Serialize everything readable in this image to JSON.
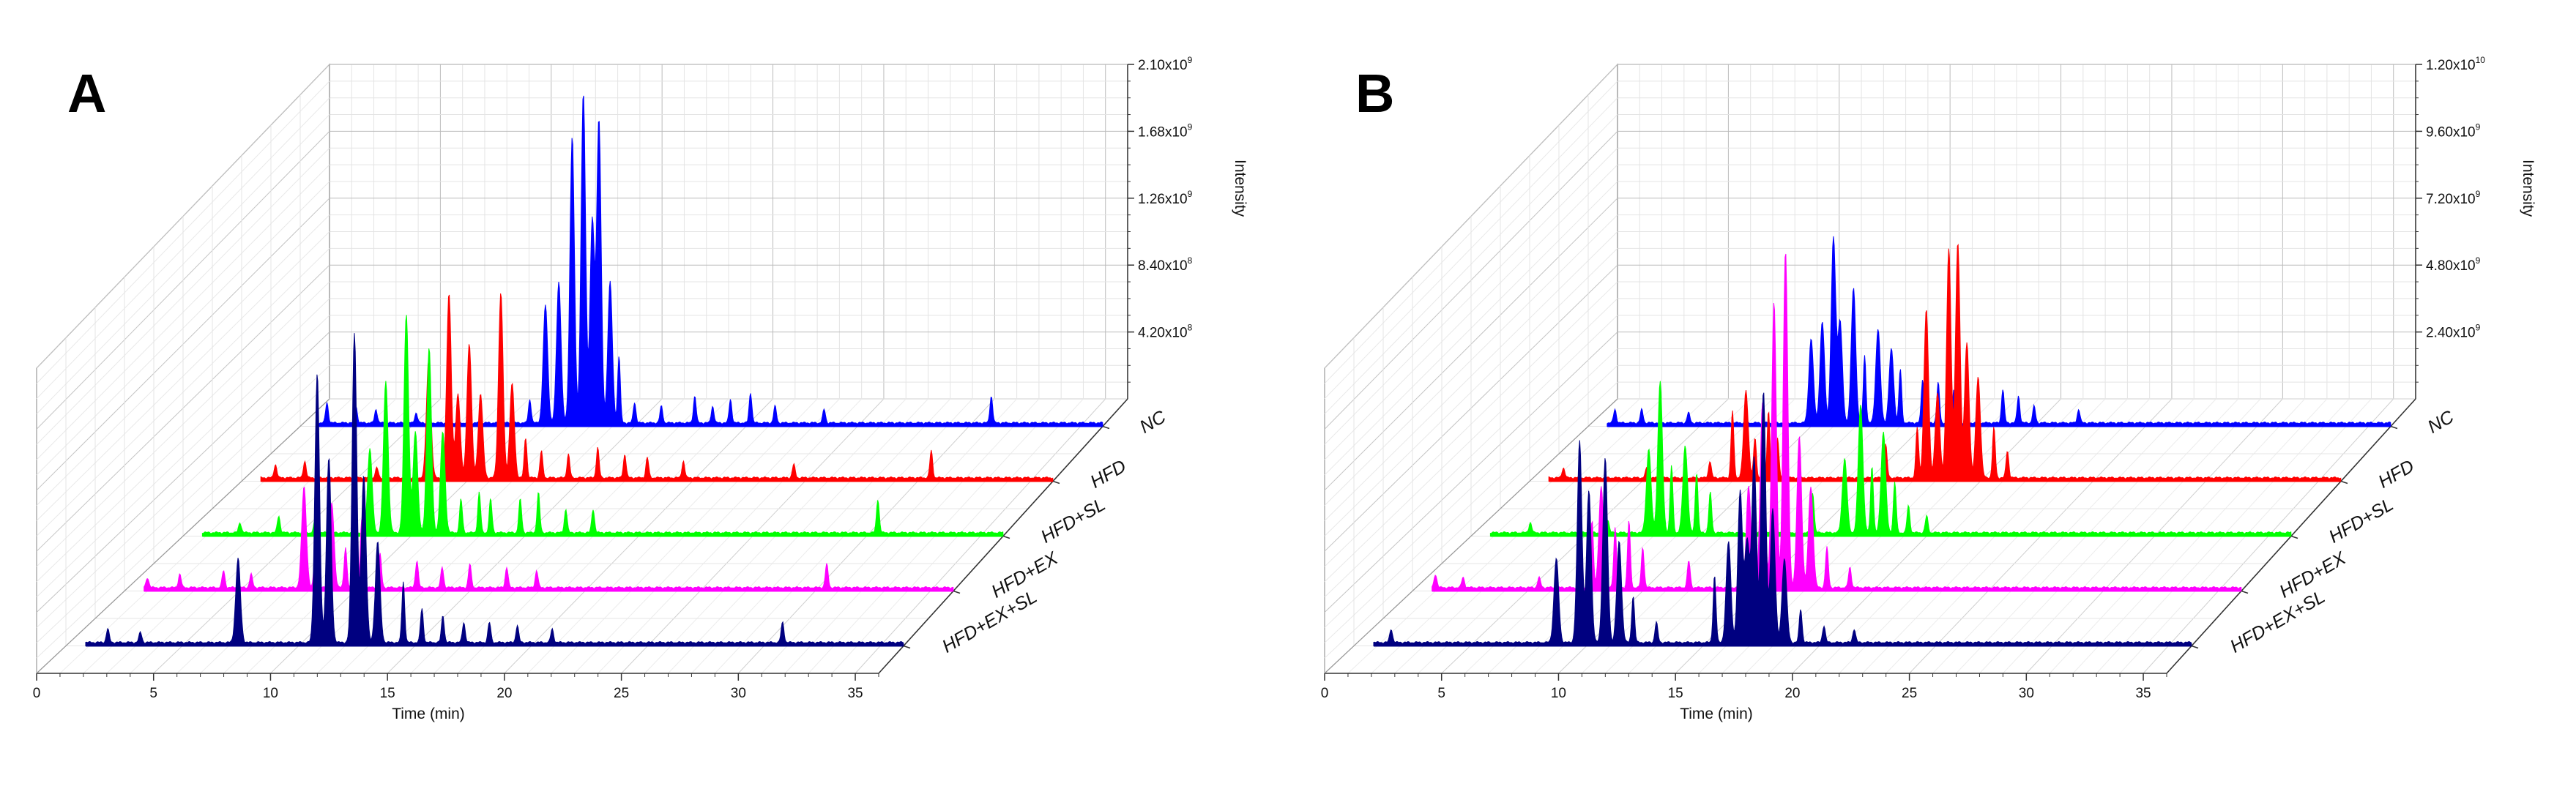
{
  "chart_data": [
    {
      "panel_label": "A",
      "type": "area",
      "title": "",
      "xlabel": "Time (min)",
      "ylabel": "Intensity",
      "xlim": [
        0,
        36
      ],
      "x_ticks": [
        "0",
        "5",
        "10",
        "15",
        "20",
        "25",
        "30",
        "35"
      ],
      "ylim": [
        0,
        2100000000
      ],
      "y_ticks": [
        {
          "mantissa": "4.20x10",
          "exp": "8",
          "value": 420000000
        },
        {
          "mantissa": "8.40x10",
          "exp": "8",
          "value": 840000000
        },
        {
          "mantissa": "1.26x10",
          "exp": "9",
          "value": 1260000000
        },
        {
          "mantissa": "1.68x10",
          "exp": "9",
          "value": 1680000000
        },
        {
          "mantissa": "2.10x10",
          "exp": "9",
          "value": 2100000000
        }
      ],
      "series": [
        {
          "name": "NC",
          "color": "#0000ff",
          "peaks": [
            [
              1.2,
              0.06
            ],
            [
              2.5,
              0.05
            ],
            [
              3.4,
              0.04
            ],
            [
              5.2,
              0.03
            ],
            [
              10.3,
              0.07
            ],
            [
              11,
              0.35
            ],
            [
              11.6,
              0.42
            ],
            [
              12.2,
              0.85
            ],
            [
              12.7,
              0.98
            ],
            [
              13.1,
              0.6
            ],
            [
              13.4,
              0.9
            ],
            [
              13.9,
              0.42
            ],
            [
              14.3,
              0.2
            ],
            [
              15,
              0.06
            ],
            [
              16.2,
              0.05
            ],
            [
              17.7,
              0.08
            ],
            [
              18.5,
              0.05
            ],
            [
              19.3,
              0.07
            ],
            [
              20.2,
              0.09
            ],
            [
              21.3,
              0.05
            ],
            [
              23.5,
              0.04
            ],
            [
              31,
              0.08
            ]
          ]
        },
        {
          "name": "HFD",
          "color": "#ff0000",
          "peaks": [
            [
              1.5,
              0.04
            ],
            [
              2.8,
              0.05
            ],
            [
              6,
              0.03
            ],
            [
              8.3,
              0.35
            ],
            [
              9.2,
              0.55
            ],
            [
              9.6,
              0.25
            ],
            [
              10.1,
              0.4
            ],
            [
              10.6,
              0.25
            ],
            [
              11.5,
              0.55
            ],
            [
              12,
              0.28
            ],
            [
              12.6,
              0.12
            ],
            [
              13.3,
              0.08
            ],
            [
              14.5,
              0.07
            ],
            [
              15.8,
              0.09
            ],
            [
              17,
              0.07
            ],
            [
              18,
              0.06
            ],
            [
              19.6,
              0.05
            ],
            [
              24.5,
              0.04
            ],
            [
              30.6,
              0.08
            ]
          ]
        },
        {
          "name": "HFD+SL",
          "color": "#00ff00",
          "peaks": [
            [
              2.5,
              0.03
            ],
            [
              4.2,
              0.05
            ],
            [
              5.8,
              0.04
            ],
            [
              8.2,
              0.25
            ],
            [
              8.9,
              0.45
            ],
            [
              9.8,
              0.65
            ],
            [
              10.2,
              0.3
            ],
            [
              10.8,
              0.55
            ],
            [
              11.4,
              0.3
            ],
            [
              12.2,
              0.1
            ],
            [
              13,
              0.12
            ],
            [
              13.5,
              0.1
            ],
            [
              14.8,
              0.1
            ],
            [
              15.6,
              0.12
            ],
            [
              16.8,
              0.07
            ],
            [
              18,
              0.07
            ],
            [
              30.5,
              0.1
            ]
          ]
        },
        {
          "name": "HFD+EX",
          "color": "#ff00ff",
          "peaks": [
            [
              1,
              0.03
            ],
            [
              2.4,
              0.04
            ],
            [
              4.3,
              0.05
            ],
            [
              5.5,
              0.04
            ],
            [
              7.8,
              0.3
            ],
            [
              8.3,
              0.15
            ],
            [
              9,
              0.25
            ],
            [
              9.6,
              0.12
            ],
            [
              10.3,
              0.2
            ],
            [
              11.1,
              0.1
            ],
            [
              12.7,
              0.08
            ],
            [
              13.8,
              0.06
            ],
            [
              15,
              0.07
            ],
            [
              16.6,
              0.06
            ],
            [
              17.9,
              0.05
            ],
            [
              30.5,
              0.07
            ]
          ]
        },
        {
          "name": "HFD+EX+SL",
          "color": "#000080",
          "peaks": [
            [
              0.6,
              0.03
            ],
            [
              1.8,
              0.04
            ],
            [
              3.2,
              0.03
            ],
            [
              7.4,
              0.25
            ],
            [
              10.8,
              0.8
            ],
            [
              11.3,
              0.55
            ],
            [
              12.4,
              0.92
            ],
            [
              12.8,
              0.5
            ],
            [
              13.4,
              0.3
            ],
            [
              14.5,
              0.18
            ],
            [
              15.3,
              0.1
            ],
            [
              16.2,
              0.08
            ],
            [
              17.1,
              0.06
            ],
            [
              18.2,
              0.06
            ],
            [
              19.4,
              0.05
            ],
            [
              20.9,
              0.04
            ],
            [
              30.8,
              0.06
            ]
          ]
        }
      ]
    },
    {
      "panel_label": "B",
      "type": "area",
      "title": "",
      "xlabel": "Time (min)",
      "ylabel": "Intensity",
      "xlim": [
        0,
        36
      ],
      "x_ticks": [
        "0",
        "5",
        "10",
        "15",
        "20",
        "25",
        "30",
        "35"
      ],
      "ylim": [
        0,
        12000000000
      ],
      "y_ticks": [
        {
          "mantissa": "2.40x10",
          "exp": "9",
          "value": 2400000000
        },
        {
          "mantissa": "4.80x10",
          "exp": "9",
          "value": 4800000000
        },
        {
          "mantissa": "7.20x10",
          "exp": "9",
          "value": 7200000000
        },
        {
          "mantissa": "9.60x10",
          "exp": "9",
          "value": 9600000000
        },
        {
          "mantissa": "1.20x10",
          "exp": "10",
          "value": 12000000000
        }
      ],
      "series": [
        {
          "name": "NC",
          "color": "#0000ff",
          "peaks": [
            [
              1.2,
              0.04
            ],
            [
              2.4,
              0.04
            ],
            [
              4.5,
              0.03
            ],
            [
              10,
              0.25
            ],
            [
              10.5,
              0.3
            ],
            [
              11,
              0.55
            ],
            [
              11.3,
              0.3
            ],
            [
              11.9,
              0.4
            ],
            [
              12.4,
              0.2
            ],
            [
              13,
              0.28
            ],
            [
              13.6,
              0.22
            ],
            [
              14,
              0.16
            ],
            [
              15,
              0.13
            ],
            [
              15.7,
              0.12
            ],
            [
              16.4,
              0.1
            ],
            [
              18.6,
              0.1
            ],
            [
              19.3,
              0.08
            ],
            [
              20,
              0.05
            ],
            [
              22,
              0.04
            ]
          ]
        },
        {
          "name": "HFD",
          "color": "#ff0000",
          "peaks": [
            [
              1.5,
              0.03
            ],
            [
              5.2,
              0.03
            ],
            [
              8,
              0.05
            ],
            [
              9,
              0.2
            ],
            [
              9.6,
              0.26
            ],
            [
              10,
              0.12
            ],
            [
              10.6,
              0.2
            ],
            [
              11,
              0.12
            ],
            [
              15.8,
              0.1
            ],
            [
              17.2,
              0.15
            ],
            [
              17.6,
              0.5
            ],
            [
              18.1,
              0.25
            ],
            [
              18.6,
              0.68
            ],
            [
              19,
              0.7
            ],
            [
              19.4,
              0.4
            ],
            [
              19.9,
              0.3
            ],
            [
              20.6,
              0.15
            ],
            [
              21.2,
              0.08
            ]
          ]
        },
        {
          "name": "HFD+SL",
          "color": "#00ff00",
          "peaks": [
            [
              2.6,
              0.03
            ],
            [
              6,
              0.04
            ],
            [
              7.8,
              0.25
            ],
            [
              8.3,
              0.45
            ],
            [
              8.8,
              0.2
            ],
            [
              9.4,
              0.26
            ],
            [
              9.9,
              0.18
            ],
            [
              10.5,
              0.12
            ],
            [
              15,
              0.12
            ],
            [
              16.4,
              0.22
            ],
            [
              17.1,
              0.38
            ],
            [
              17.6,
              0.2
            ],
            [
              18.1,
              0.3
            ],
            [
              18.6,
              0.15
            ],
            [
              19.2,
              0.08
            ],
            [
              20,
              0.05
            ]
          ]
        },
        {
          "name": "HFD+EX",
          "color": "#ff00ff",
          "peaks": [
            [
              1,
              0.04
            ],
            [
              2.2,
              0.03
            ],
            [
              5.5,
              0.03
            ],
            [
              7.8,
              0.2
            ],
            [
              8.2,
              0.3
            ],
            [
              8.8,
              0.18
            ],
            [
              9.4,
              0.2
            ],
            [
              10,
              0.12
            ],
            [
              12,
              0.08
            ],
            [
              14.6,
              0.3
            ],
            [
              15.2,
              0.55
            ],
            [
              15.7,
              0.85
            ],
            [
              16.2,
              1.0
            ],
            [
              16.8,
              0.45
            ],
            [
              17.3,
              0.3
            ],
            [
              18,
              0.12
            ],
            [
              19,
              0.06
            ]
          ]
        },
        {
          "name": "HFD+EX+SL",
          "color": "#000080",
          "peaks": [
            [
              0.6,
              0.03
            ],
            [
              1.6,
              0.04
            ],
            [
              8.7,
              0.25
            ],
            [
              9.7,
              0.6
            ],
            [
              10.1,
              0.45
            ],
            [
              10.8,
              0.55
            ],
            [
              11.4,
              0.3
            ],
            [
              12,
              0.14
            ],
            [
              13,
              0.06
            ],
            [
              15.5,
              0.2
            ],
            [
              16.1,
              0.3
            ],
            [
              16.6,
              0.45
            ],
            [
              16.9,
              0.3
            ],
            [
              17.2,
              0.55
            ],
            [
              17.6,
              0.75
            ],
            [
              18,
              0.4
            ],
            [
              18.5,
              0.25
            ],
            [
              19.2,
              0.1
            ],
            [
              20.2,
              0.05
            ],
            [
              21.5,
              0.04
            ]
          ]
        }
      ]
    }
  ]
}
